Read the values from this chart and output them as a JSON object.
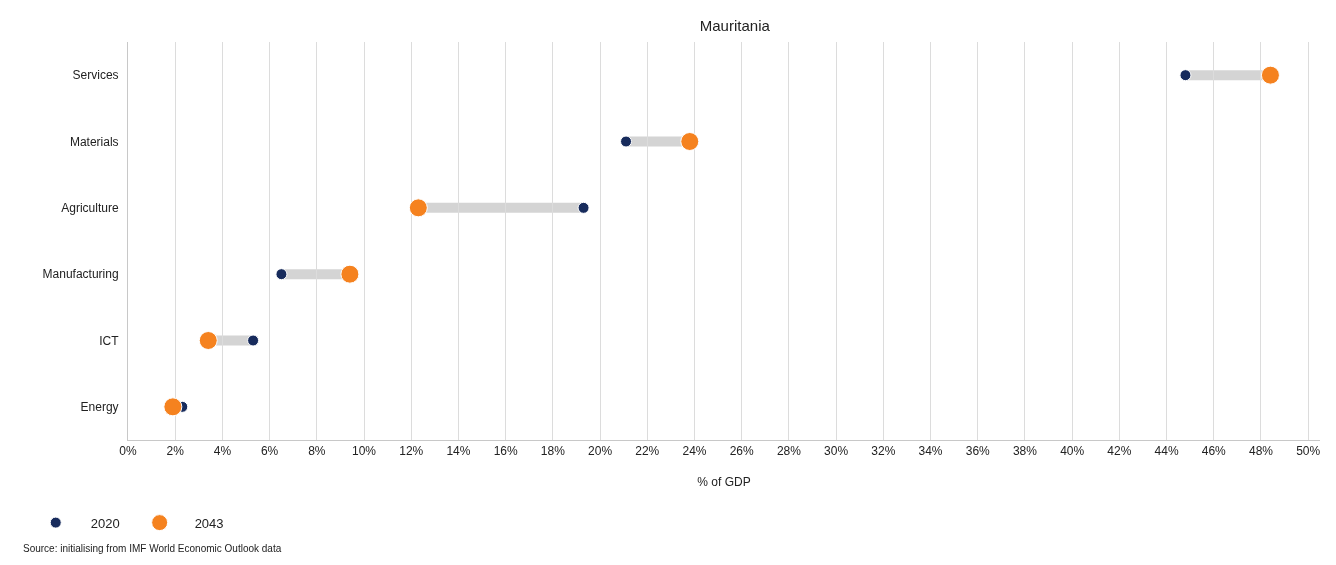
{
  "chart_data": {
    "type": "scatter",
    "title": "Mauritania",
    "xlabel": "% of GDP",
    "orientation": "horizontal",
    "categories": [
      "Services",
      "Materials",
      "Agriculture",
      "Manufacturing",
      "ICT",
      "Energy"
    ],
    "series": [
      {
        "name": "2020",
        "color": "#172b5c",
        "values": [
          44.8,
          21.1,
          19.3,
          6.5,
          5.3,
          2.3
        ]
      },
      {
        "name": "2043",
        "color": "#f5821f",
        "values": [
          48.4,
          23.8,
          12.3,
          9.4,
          3.4,
          1.9
        ]
      }
    ],
    "xlim": [
      0,
      50.5
    ],
    "xticks": [
      {
        "value": 0,
        "label": "0%"
      },
      {
        "value": 2,
        "label": "2%"
      },
      {
        "value": 4,
        "label": "4%"
      },
      {
        "value": 6,
        "label": "6%"
      },
      {
        "value": 8,
        "label": "8%"
      },
      {
        "value": 10,
        "label": "10%"
      },
      {
        "value": 12,
        "label": "12%"
      },
      {
        "value": 14,
        "label": "14%"
      },
      {
        "value": 16,
        "label": "16%"
      },
      {
        "value": 18,
        "label": "18%"
      },
      {
        "value": 20,
        "label": "20%"
      },
      {
        "value": 22,
        "label": "22%"
      },
      {
        "value": 24,
        "label": "24%"
      },
      {
        "value": 26,
        "label": "26%"
      },
      {
        "value": 28,
        "label": "28%"
      },
      {
        "value": 30,
        "label": "30%"
      },
      {
        "value": 32,
        "label": "32%"
      },
      {
        "value": 34,
        "label": "34%"
      },
      {
        "value": 36,
        "label": "36%"
      },
      {
        "value": 38,
        "label": "38%"
      },
      {
        "value": 40,
        "label": "40%"
      },
      {
        "value": 42,
        "label": "42%"
      },
      {
        "value": 44,
        "label": "44%"
      },
      {
        "value": 46,
        "label": "46%"
      },
      {
        "value": 48,
        "label": "48%"
      },
      {
        "value": 50,
        "label": "50%"
      }
    ],
    "grid": "x",
    "legend": "bottom left",
    "marker": "circle",
    "annotations": [
      "Source: initialising from IMF World Economic Outlook data"
    ]
  }
}
